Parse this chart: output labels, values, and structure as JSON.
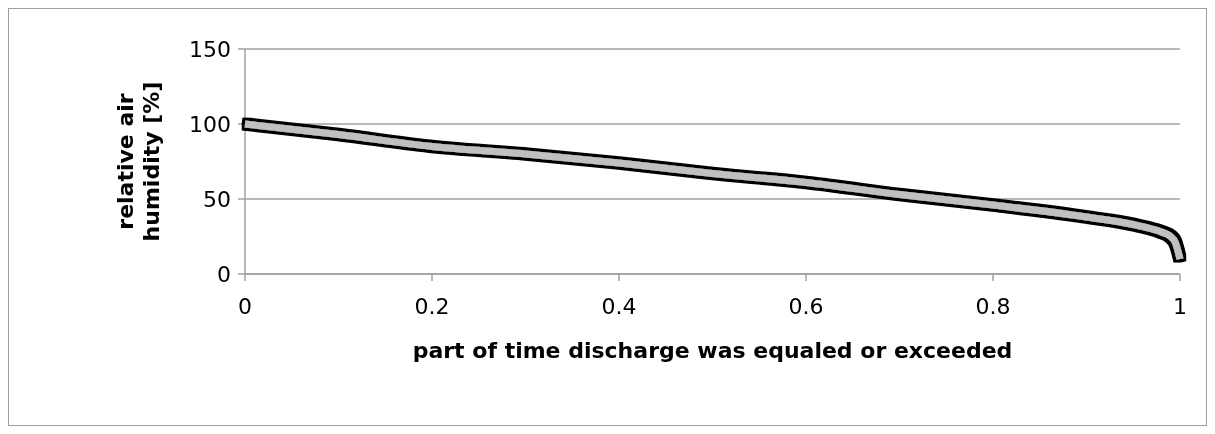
{
  "chart_data": {
    "type": "line",
    "xlabel": "part of time discharge was equaled or exceeded",
    "ylabel": "relative air humidity [%]",
    "x": [
      0,
      0.1,
      0.2,
      0.3,
      0.4,
      0.5,
      0.6,
      0.7,
      0.8,
      0.9,
      0.95,
      0.97,
      0.98,
      0.99,
      0.995,
      1
    ],
    "series": [
      {
        "color": "#c0c0c0",
        "values": [
          100,
          93,
          85,
          80,
          74,
          67,
          61,
          53,
          46,
          38,
          33,
          30,
          28,
          25,
          21,
          10
        ]
      }
    ],
    "xlim": [
      0,
      1
    ],
    "xticks": [
      0,
      0.2,
      0.4,
      0.6,
      0.8,
      1
    ],
    "ylim": [
      0,
      150
    ],
    "yticks": [
      0,
      50,
      100,
      150
    ],
    "grid": "y",
    "line_style": "solid"
  }
}
